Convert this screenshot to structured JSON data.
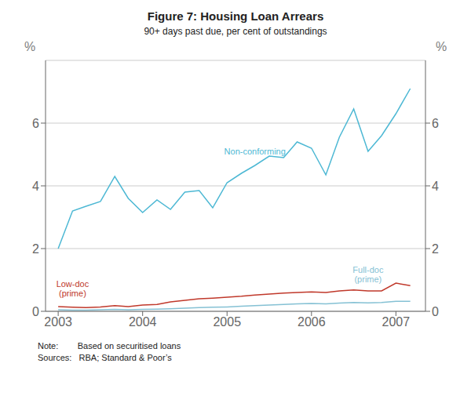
{
  "chart_data": {
    "type": "line",
    "title": "Figure 7: Housing Loan Arrears",
    "subtitle": "90+ days past due, per cent of outstandings",
    "ylabel": "%",
    "y2label": "%",
    "annotations": [
      "Note:        Based on securitised loans",
      "Sources:   RBA; Standard & Poor’s"
    ],
    "x": [
      2003.0,
      2003.17,
      2003.33,
      2003.5,
      2003.67,
      2003.83,
      2004.0,
      2004.17,
      2004.33,
      2004.5,
      2004.67,
      2004.83,
      2005.0,
      2005.17,
      2005.33,
      2005.5,
      2005.67,
      2005.83,
      2006.0,
      2006.17,
      2006.33,
      2006.5,
      2006.67,
      2006.83,
      2007.0,
      2007.17
    ],
    "series": [
      {
        "name": "Non-conforming",
        "color": "#4db8d4",
        "values": [
          2.0,
          3.2,
          3.35,
          3.5,
          4.3,
          3.6,
          3.15,
          3.55,
          3.25,
          3.8,
          3.85,
          3.3,
          4.1,
          4.4,
          4.65,
          4.95,
          4.9,
          5.4,
          5.2,
          4.35,
          5.55,
          6.45,
          5.1,
          5.6,
          6.3,
          7.1
        ]
      },
      {
        "name": "Low-doc\n(prime)",
        "color": "#c0392b",
        "values": [
          0.15,
          0.13,
          0.12,
          0.14,
          0.18,
          0.15,
          0.2,
          0.22,
          0.3,
          0.35,
          0.4,
          0.42,
          0.45,
          0.48,
          0.52,
          0.55,
          0.58,
          0.6,
          0.62,
          0.6,
          0.65,
          0.68,
          0.65,
          0.65,
          0.9,
          0.82
        ]
      },
      {
        "name": "Full-doc\n(prime)",
        "color": "#85c1d4",
        "values": [
          0.05,
          0.04,
          0.04,
          0.05,
          0.06,
          0.05,
          0.06,
          0.07,
          0.08,
          0.1,
          0.12,
          0.13,
          0.14,
          0.16,
          0.18,
          0.2,
          0.22,
          0.24,
          0.25,
          0.24,
          0.26,
          0.28,
          0.27,
          0.28,
          0.32,
          0.32
        ]
      }
    ],
    "xlim": [
      2002.85,
      2007.35
    ],
    "xticks": [
      2003,
      2004,
      2005,
      2006,
      2007
    ],
    "ylim": [
      0,
      8
    ],
    "yticks": [
      0,
      2,
      4,
      6
    ],
    "y2lim": [
      0,
      8
    ],
    "y2ticks": [
      0,
      2,
      4,
      6
    ],
    "grid": true
  }
}
